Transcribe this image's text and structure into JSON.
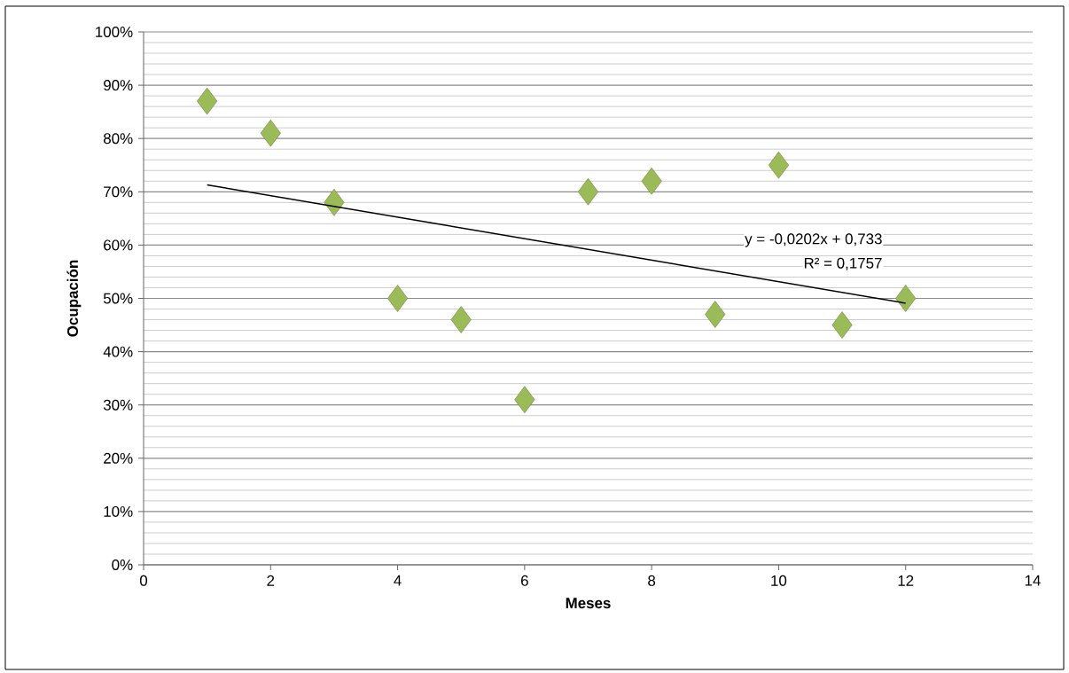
{
  "chart_data": {
    "type": "scatter",
    "xlabel": "Meses",
    "ylabel": "Ocupación",
    "series": [
      {
        "color": "#9bbb59",
        "marker": "diamond",
        "x": [
          1,
          2,
          3,
          4,
          5,
          6,
          7,
          8,
          9,
          10,
          11,
          12
        ],
        "values": [
          87,
          81,
          68,
          50,
          46,
          31,
          70,
          72,
          47,
          75,
          45,
          50
        ]
      },
      {
        "type": "line",
        "color": "#000000",
        "marker": "none",
        "x": [
          1,
          12
        ],
        "values": [
          71.3,
          49.1
        ]
      }
    ],
    "annotations": [
      "y = -0,0202x + 0,733",
      "R² = 0,1757"
    ],
    "xlim": [
      0,
      14
    ],
    "xticks": [
      0,
      2,
      4,
      6,
      8,
      10,
      12,
      14
    ],
    "ylim": [
      0,
      100
    ],
    "yticks": [
      {
        "value": 0,
        "label": "0%"
      },
      {
        "value": 10,
        "label": "10%"
      },
      {
        "value": 20,
        "label": "20%"
      },
      {
        "value": 30,
        "label": "30%"
      },
      {
        "value": 40,
        "label": "40%"
      },
      {
        "value": 50,
        "label": "50%"
      },
      {
        "value": 60,
        "label": "60%"
      },
      {
        "value": 70,
        "label": "70%"
      },
      {
        "value": 80,
        "label": "80%"
      },
      {
        "value": 90,
        "label": "90%"
      },
      {
        "value": 100,
        "label": "100%"
      }
    ],
    "grid": "y"
  }
}
